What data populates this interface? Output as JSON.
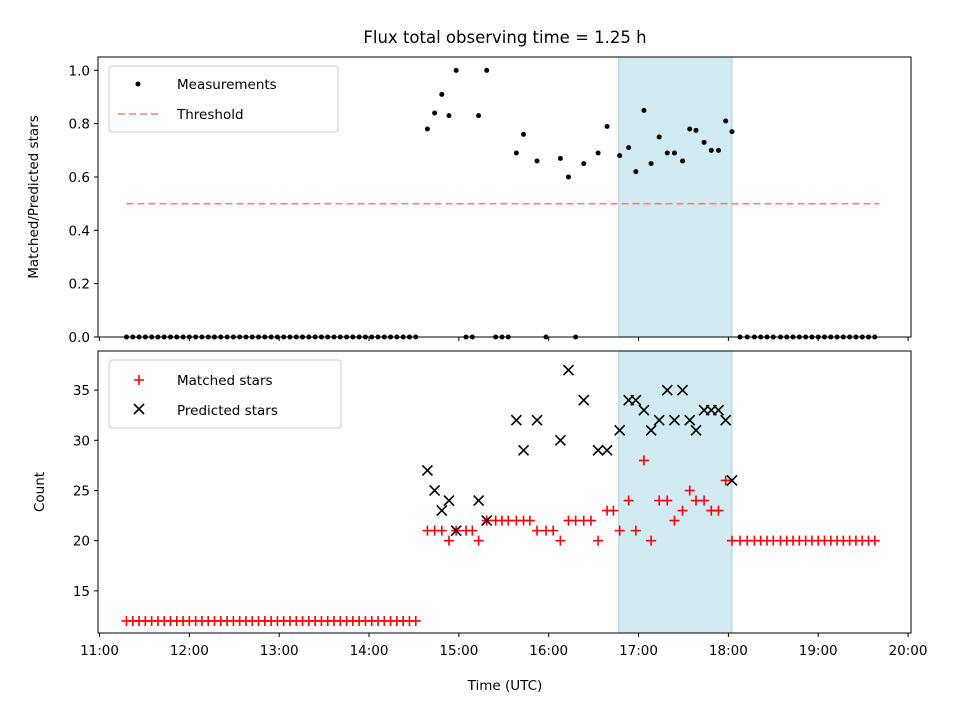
{
  "figure": {
    "title": "Flux total observing time = 1.25 h",
    "xlabel": "Time (UTC)",
    "highlight_color": "#add8e6",
    "xlim": [
      10.983,
      20.033
    ],
    "xticks": [
      {
        "value": 11,
        "label": "11:00"
      },
      {
        "value": 12,
        "label": "12:00"
      },
      {
        "value": 13,
        "label": "13:00"
      },
      {
        "value": 14,
        "label": "14:00"
      },
      {
        "value": 15,
        "label": "15:00"
      },
      {
        "value": 16,
        "label": "16:00"
      },
      {
        "value": 17,
        "label": "17:00"
      },
      {
        "value": 18,
        "label": "18:00"
      },
      {
        "value": 19,
        "label": "19:00"
      },
      {
        "value": 20,
        "label": "20:00"
      }
    ],
    "observing_window": [
      16.78,
      18.04
    ]
  },
  "chart_data": [
    {
      "type": "scatter",
      "ylabel": "Matched/Predicted stars",
      "ylim": [
        0,
        1.05
      ],
      "yticks": [
        {
          "value": 0.0,
          "label": "0.0"
        },
        {
          "value": 0.2,
          "label": "0.2"
        },
        {
          "value": 0.4,
          "label": "0.4"
        },
        {
          "value": 0.6,
          "label": "0.6"
        },
        {
          "value": 0.8,
          "label": "0.8"
        },
        {
          "value": 1.0,
          "label": "1.0"
        }
      ],
      "legend": {
        "placement": "top-left",
        "entries": [
          "Measurements",
          "Threshold"
        ]
      },
      "series": [
        {
          "name": "Measurements",
          "marker": "dot",
          "color": "#000000",
          "x": [
            11.3,
            11.37,
            11.44,
            11.51,
            11.58,
            11.65,
            11.72,
            11.79,
            11.86,
            11.93,
            12.0,
            12.07,
            12.14,
            12.21,
            12.28,
            12.35,
            12.42,
            12.49,
            12.56,
            12.63,
            12.7,
            12.77,
            12.84,
            12.91,
            12.98,
            13.05,
            13.12,
            13.19,
            13.26,
            13.33,
            13.4,
            13.47,
            13.54,
            13.61,
            13.68,
            13.75,
            13.82,
            13.89,
            13.96,
            14.03,
            14.1,
            14.17,
            14.24,
            14.31,
            14.38,
            14.45,
            14.52,
            14.65,
            14.73,
            14.81,
            14.89,
            14.97,
            15.08,
            15.15,
            15.22,
            15.31,
            15.41,
            15.48,
            15.55,
            15.64,
            15.72,
            15.87,
            15.97,
            16.13,
            16.22,
            16.3,
            16.39,
            16.55,
            16.65,
            16.79,
            16.89,
            16.97,
            17.06,
            17.14,
            17.23,
            17.32,
            17.4,
            17.49,
            17.57,
            17.64,
            17.73,
            17.81,
            17.89,
            17.97,
            18.04,
            18.13,
            18.21,
            18.29,
            18.36,
            18.43,
            18.5,
            18.58,
            18.65,
            18.72,
            18.79,
            18.86,
            18.93,
            19.0,
            19.07,
            19.14,
            19.21,
            19.28,
            19.35,
            19.42,
            19.49,
            19.56,
            19.63
          ],
          "values": [
            0,
            0,
            0,
            0,
            0,
            0,
            0,
            0,
            0,
            0,
            0,
            0,
            0,
            0,
            0,
            0,
            0,
            0,
            0,
            0,
            0,
            0,
            0,
            0,
            0,
            0,
            0,
            0,
            0,
            0,
            0,
            0,
            0,
            0,
            0,
            0,
            0,
            0,
            0,
            0,
            0,
            0,
            0,
            0,
            0,
            0,
            0,
            0.78,
            0.84,
            0.91,
            0.83,
            1.0,
            0,
            0,
            0.83,
            1.0,
            0,
            0,
            0,
            0.69,
            0.76,
            0.66,
            0,
            0.67,
            0.6,
            0,
            0.65,
            0.69,
            0.79,
            0.68,
            0.71,
            0.62,
            0.85,
            0.65,
            0.75,
            0.69,
            0.69,
            0.66,
            0.78,
            0.775,
            0.73,
            0.7,
            0.7,
            0.81,
            0.77,
            0,
            0,
            0,
            0,
            0,
            0,
            0,
            0,
            0,
            0,
            0,
            0,
            0,
            0,
            0,
            0,
            0,
            0,
            0,
            0,
            0,
            0
          ]
        },
        {
          "name": "Threshold",
          "line": "dashed",
          "color": "#ff7f7f",
          "x": [
            11.3,
            19.68
          ],
          "values": [
            0.5,
            0.5
          ]
        }
      ]
    },
    {
      "type": "scatter",
      "ylabel": "Count",
      "ylim": [
        10.8,
        38.9
      ],
      "yticks": [
        {
          "value": 15,
          "label": "15"
        },
        {
          "value": 20,
          "label": "20"
        },
        {
          "value": 25,
          "label": "25"
        },
        {
          "value": 30,
          "label": "30"
        },
        {
          "value": 35,
          "label": "35"
        }
      ],
      "legend": {
        "placement": "top-left",
        "entries": [
          "Matched stars",
          "Predicted stars"
        ]
      },
      "series": [
        {
          "name": "Matched stars",
          "marker": "plus",
          "color": "#ff0000",
          "x": [
            11.3,
            11.37,
            11.44,
            11.51,
            11.58,
            11.65,
            11.72,
            11.79,
            11.86,
            11.93,
            12.0,
            12.07,
            12.14,
            12.21,
            12.28,
            12.35,
            12.42,
            12.49,
            12.56,
            12.63,
            12.7,
            12.77,
            12.84,
            12.91,
            12.98,
            13.05,
            13.12,
            13.19,
            13.26,
            13.33,
            13.4,
            13.47,
            13.54,
            13.61,
            13.68,
            13.75,
            13.82,
            13.89,
            13.96,
            14.03,
            14.1,
            14.17,
            14.24,
            14.31,
            14.38,
            14.45,
            14.52,
            14.65,
            14.73,
            14.81,
            14.89,
            14.97,
            15.08,
            15.15,
            15.22,
            15.31,
            15.41,
            15.48,
            15.55,
            15.64,
            15.72,
            15.79,
            15.87,
            15.97,
            16.05,
            16.13,
            16.22,
            16.3,
            16.39,
            16.47,
            16.55,
            16.65,
            16.72,
            16.79,
            16.89,
            16.97,
            17.06,
            17.14,
            17.23,
            17.32,
            17.4,
            17.49,
            17.57,
            17.64,
            17.73,
            17.81,
            17.89,
            17.97,
            18.04,
            18.13,
            18.21,
            18.29,
            18.36,
            18.43,
            18.5,
            18.58,
            18.65,
            18.72,
            18.79,
            18.86,
            18.93,
            19.0,
            19.07,
            19.14,
            19.21,
            19.28,
            19.35,
            19.42,
            19.49,
            19.56,
            19.63
          ],
          "values": [
            12,
            12,
            12,
            12,
            12,
            12,
            12,
            12,
            12,
            12,
            12,
            12,
            12,
            12,
            12,
            12,
            12,
            12,
            12,
            12,
            12,
            12,
            12,
            12,
            12,
            12,
            12,
            12,
            12,
            12,
            12,
            12,
            12,
            12,
            12,
            12,
            12,
            12,
            12,
            12,
            12,
            12,
            12,
            12,
            12,
            12,
            12,
            21,
            21,
            21,
            20,
            21,
            21,
            21,
            20,
            22,
            22,
            22,
            22,
            22,
            22,
            22,
            21,
            21,
            21,
            20,
            22,
            22,
            22,
            22,
            20,
            23,
            23,
            21,
            24,
            21,
            28,
            20,
            24,
            24,
            22,
            23,
            25,
            24,
            24,
            23,
            23,
            26,
            20,
            20,
            20,
            20,
            20,
            20,
            20,
            20,
            20,
            20,
            20,
            20,
            20,
            20,
            20,
            20,
            20,
            20,
            20,
            20,
            20,
            20,
            20
          ]
        },
        {
          "name": "Predicted stars",
          "marker": "x",
          "color": "#000000",
          "x": [
            14.65,
            14.73,
            14.81,
            14.89,
            14.97,
            15.22,
            15.31,
            15.64,
            15.72,
            15.87,
            16.13,
            16.22,
            16.39,
            16.55,
            16.65,
            16.79,
            16.89,
            16.97,
            17.06,
            17.14,
            17.23,
            17.32,
            17.4,
            17.49,
            17.57,
            17.64,
            17.73,
            17.81,
            17.89,
            17.97,
            18.04
          ],
          "values": [
            27,
            25,
            23,
            24,
            21,
            24,
            22,
            32,
            29,
            32,
            30,
            37,
            34,
            29,
            29,
            31,
            34,
            34,
            33,
            31,
            32,
            35,
            32,
            35,
            32,
            31,
            33,
            33,
            33,
            32,
            26
          ]
        }
      ]
    }
  ]
}
